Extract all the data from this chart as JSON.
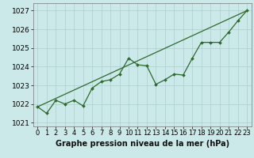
{
  "title": "Graphe pression niveau de la mer (hPa)",
  "bg_color": "#cce9e9",
  "grid_color": "#aacfcf",
  "line_color": "#2d6a2d",
  "xlim": [
    -0.5,
    23.5
  ],
  "ylim": [
    1020.8,
    1027.4
  ],
  "yticks": [
    1021,
    1022,
    1023,
    1024,
    1025,
    1026,
    1027
  ],
  "xticks": [
    0,
    1,
    2,
    3,
    4,
    5,
    6,
    7,
    8,
    9,
    10,
    11,
    12,
    13,
    14,
    15,
    16,
    17,
    18,
    19,
    20,
    21,
    22,
    23
  ],
  "series_wavy_x": [
    0,
    1,
    2,
    3,
    4,
    5,
    6,
    7,
    8,
    9,
    10,
    11,
    12,
    13,
    14,
    15,
    16,
    17,
    18,
    19,
    20,
    21,
    22,
    23
  ],
  "series_wavy_y": [
    1021.85,
    1021.5,
    1022.2,
    1022.0,
    1022.2,
    1021.9,
    1022.85,
    1023.2,
    1023.3,
    1023.6,
    1024.45,
    1024.1,
    1024.05,
    1023.05,
    1023.3,
    1023.6,
    1023.55,
    1024.45,
    1025.3,
    1025.3,
    1025.3,
    1025.85,
    1026.45,
    1027.0
  ],
  "series_trend_x": [
    0,
    23
  ],
  "series_trend_y": [
    1021.85,
    1027.0
  ],
  "xlabel_fontsize": 7,
  "ylabel_fontsize": 6.5,
  "tick_fontsize": 6,
  "title_fontsize": 7
}
